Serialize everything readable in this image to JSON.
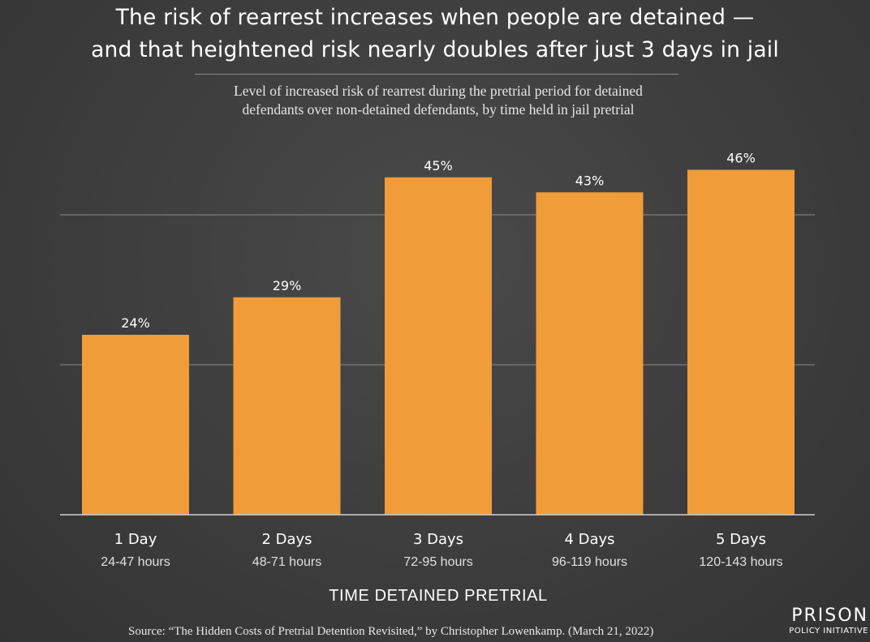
{
  "title": {
    "line1": "The risk of rearrest increases when people are detained —",
    "line2": "and that heightened risk nearly doubles after just 3 days in jail"
  },
  "subtitle": {
    "line1": "Level of increased risk of rearrest during the pretrial period for detained",
    "line2": "defendants over non-detained defendants, by time held in jail pretrial"
  },
  "chart_data": {
    "type": "bar",
    "categories": [
      "1 Day",
      "2 Days",
      "3 Days",
      "4 Days",
      "5 Days"
    ],
    "category_sublabels": [
      "24-47 hours",
      "48-71 hours",
      "72-95 hours",
      "96-119 hours",
      "120-143 hours"
    ],
    "values": [
      24,
      29,
      45,
      43,
      46
    ],
    "value_labels": [
      "24%",
      "29%",
      "45%",
      "43%",
      "46%"
    ],
    "xlabel": "TIME DETAINED PRETRIAL",
    "ylabel": "",
    "ylim": [
      0,
      50
    ],
    "gridlines": [
      20,
      40
    ],
    "grid": true,
    "legend": "none",
    "bar_color": "#f09c38",
    "grid_color": "#8a8a8a"
  },
  "source": "Source: “The Hidden Costs of Pretrial Detention Revisited,” by Christopher Lowenkamp. (March 21, 2022)",
  "logo": {
    "top": "PRISON",
    "bottom": "POLICY INITIATIVE"
  }
}
